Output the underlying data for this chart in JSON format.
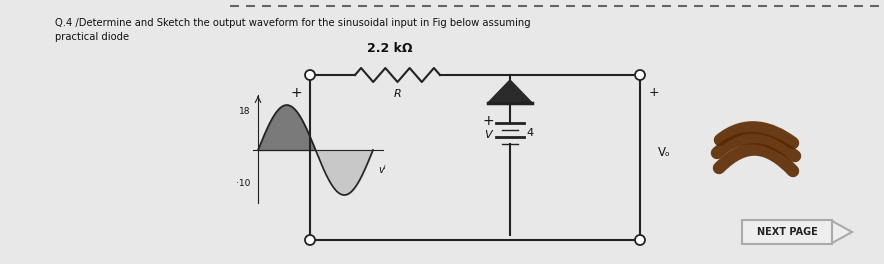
{
  "bg_color": "#e8e8e8",
  "page_color": "#f5f5f0",
  "top_dashes_color": "#555555",
  "title_line1": "Q.4 /Determine and Sketch the output waveform for the sinusoidal input in Fig below assuming",
  "title_line2": "practical diode",
  "resistor_label": "2.2 kΩ",
  "circuit_node_label_R": "R",
  "circuit_vi_label": "vᴵ",
  "circuit_vo_label": "Vₒ",
  "circuit_v_label": "V",
  "circuit_v_value": "4",
  "waveform_pos_label": "18",
  "waveform_neg_label": "·10",
  "next_page_text": "NEXT PAGE",
  "next_page_bg": "#eeeeee",
  "next_page_border": "#aaaaaa",
  "text_color": "#111111",
  "circuit_color": "#222222",
  "wave_color": "#222222",
  "scribble_color": "#5c2800",
  "wave_dark_fill": "#555555",
  "wave_light_fill": "#aaaaaa"
}
